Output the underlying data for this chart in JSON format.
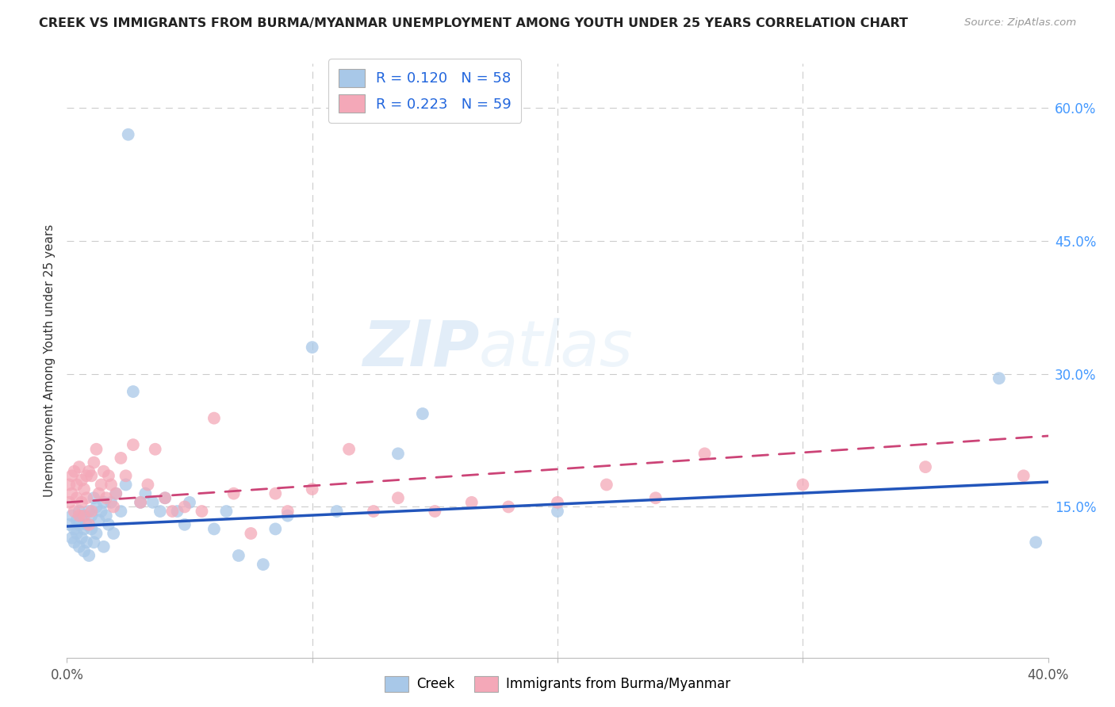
{
  "title": "CREEK VS IMMIGRANTS FROM BURMA/MYANMAR UNEMPLOYMENT AMONG YOUTH UNDER 25 YEARS CORRELATION CHART",
  "source": "Source: ZipAtlas.com",
  "ylabel": "Unemployment Among Youth under 25 years",
  "xlim": [
    0.0,
    0.4
  ],
  "ylim": [
    -0.02,
    0.65
  ],
  "yticks_right": [
    0.15,
    0.3,
    0.45,
    0.6
  ],
  "yticklabels_right": [
    "15.0%",
    "30.0%",
    "45.0%",
    "60.0%"
  ],
  "creek_color": "#a8c8e8",
  "burma_color": "#f4a8b8",
  "creek_line_color": "#2255bb",
  "burma_line_color": "#cc4477",
  "watermark_zip": "ZIP",
  "watermark_atlas": "atlas",
  "creek_x": [
    0.001,
    0.002,
    0.002,
    0.003,
    0.003,
    0.004,
    0.004,
    0.005,
    0.005,
    0.005,
    0.006,
    0.006,
    0.007,
    0.007,
    0.008,
    0.008,
    0.009,
    0.009,
    0.01,
    0.01,
    0.011,
    0.011,
    0.012,
    0.012,
    0.013,
    0.014,
    0.015,
    0.015,
    0.016,
    0.017,
    0.018,
    0.019,
    0.02,
    0.022,
    0.024,
    0.025,
    0.027,
    0.03,
    0.032,
    0.035,
    0.038,
    0.04,
    0.045,
    0.048,
    0.05,
    0.06,
    0.065,
    0.07,
    0.08,
    0.085,
    0.09,
    0.1,
    0.11,
    0.135,
    0.145,
    0.2,
    0.38,
    0.395
  ],
  "creek_y": [
    0.13,
    0.14,
    0.115,
    0.125,
    0.11,
    0.135,
    0.12,
    0.145,
    0.105,
    0.13,
    0.14,
    0.115,
    0.125,
    0.1,
    0.13,
    0.11,
    0.145,
    0.095,
    0.14,
    0.125,
    0.16,
    0.11,
    0.15,
    0.12,
    0.135,
    0.145,
    0.155,
    0.105,
    0.14,
    0.13,
    0.155,
    0.12,
    0.165,
    0.145,
    0.175,
    0.57,
    0.28,
    0.155,
    0.165,
    0.155,
    0.145,
    0.16,
    0.145,
    0.13,
    0.155,
    0.125,
    0.145,
    0.095,
    0.085,
    0.125,
    0.14,
    0.33,
    0.145,
    0.21,
    0.255,
    0.145,
    0.295,
    0.11
  ],
  "burma_x": [
    0.001,
    0.001,
    0.002,
    0.002,
    0.003,
    0.003,
    0.004,
    0.004,
    0.005,
    0.005,
    0.006,
    0.006,
    0.007,
    0.007,
    0.008,
    0.008,
    0.009,
    0.009,
    0.01,
    0.01,
    0.011,
    0.012,
    0.013,
    0.014,
    0.015,
    0.016,
    0.017,
    0.018,
    0.019,
    0.02,
    0.022,
    0.024,
    0.027,
    0.03,
    0.033,
    0.036,
    0.04,
    0.043,
    0.048,
    0.055,
    0.06,
    0.068,
    0.075,
    0.085,
    0.09,
    0.1,
    0.115,
    0.125,
    0.135,
    0.15,
    0.165,
    0.18,
    0.2,
    0.22,
    0.24,
    0.26,
    0.3,
    0.35,
    0.39
  ],
  "burma_y": [
    0.175,
    0.155,
    0.185,
    0.165,
    0.19,
    0.145,
    0.175,
    0.16,
    0.195,
    0.14,
    0.18,
    0.155,
    0.17,
    0.14,
    0.185,
    0.16,
    0.19,
    0.13,
    0.185,
    0.145,
    0.2,
    0.215,
    0.165,
    0.175,
    0.19,
    0.16,
    0.185,
    0.175,
    0.15,
    0.165,
    0.205,
    0.185,
    0.22,
    0.155,
    0.175,
    0.215,
    0.16,
    0.145,
    0.15,
    0.145,
    0.25,
    0.165,
    0.12,
    0.165,
    0.145,
    0.17,
    0.215,
    0.145,
    0.16,
    0.145,
    0.155,
    0.15,
    0.155,
    0.175,
    0.16,
    0.21,
    0.175,
    0.195,
    0.185
  ],
  "creek_trend": [
    0.128,
    0.178
  ],
  "burma_trend": [
    0.155,
    0.23
  ]
}
